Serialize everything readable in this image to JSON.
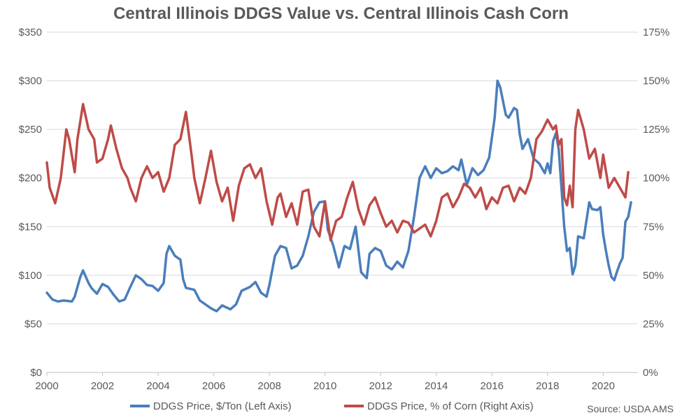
{
  "chart_data": {
    "type": "line",
    "title": "Central Illinois DDGS Value vs. Central Illinois Cash Corn",
    "source": "Source: USDA AMS",
    "x_ticks": [
      "2000",
      "2002",
      "2004",
      "2006",
      "2008",
      "2010",
      "2012",
      "2014",
      "2016",
      "2018",
      "2020"
    ],
    "xlim": [
      2000,
      2021.25
    ],
    "left_axis": {
      "ylim": [
        0,
        350
      ],
      "ticks": [
        "$0",
        "$50",
        "$100",
        "$150",
        "$200",
        "$250",
        "$300",
        "$350"
      ]
    },
    "right_axis": {
      "ylim": [
        0,
        175
      ],
      "ticks": [
        "0%",
        "25%",
        "50%",
        "75%",
        "100%",
        "125%",
        "150%",
        "175%"
      ]
    },
    "grid": true,
    "legend_position": "bottom",
    "series": [
      {
        "name": "DDGS Price, $/Ton (Left Axis)",
        "axis": "left",
        "color": "#4a7ebb",
        "points": [
          [
            2000.0,
            82
          ],
          [
            2000.2,
            75
          ],
          [
            2000.4,
            73
          ],
          [
            2000.6,
            74
          ],
          [
            2000.9,
            73
          ],
          [
            2001.0,
            78
          ],
          [
            2001.2,
            98
          ],
          [
            2001.3,
            105
          ],
          [
            2001.5,
            92
          ],
          [
            2001.6,
            87
          ],
          [
            2001.8,
            81
          ],
          [
            2002.0,
            91
          ],
          [
            2002.2,
            88
          ],
          [
            2002.4,
            80
          ],
          [
            2002.6,
            73
          ],
          [
            2002.8,
            75
          ],
          [
            2003.0,
            88
          ],
          [
            2003.2,
            100
          ],
          [
            2003.4,
            96
          ],
          [
            2003.6,
            90
          ],
          [
            2003.8,
            89
          ],
          [
            2004.0,
            84
          ],
          [
            2004.2,
            92
          ],
          [
            2004.3,
            122
          ],
          [
            2004.4,
            130
          ],
          [
            2004.6,
            120
          ],
          [
            2004.8,
            116
          ],
          [
            2004.9,
            96
          ],
          [
            2005.0,
            87
          ],
          [
            2005.3,
            85
          ],
          [
            2005.5,
            74
          ],
          [
            2005.7,
            70
          ],
          [
            2005.9,
            66
          ],
          [
            2006.1,
            63
          ],
          [
            2006.3,
            69
          ],
          [
            2006.6,
            65
          ],
          [
            2006.8,
            70
          ],
          [
            2007.0,
            84
          ],
          [
            2007.3,
            88
          ],
          [
            2007.5,
            93
          ],
          [
            2007.7,
            82
          ],
          [
            2007.9,
            78
          ],
          [
            2008.0,
            90
          ],
          [
            2008.2,
            120
          ],
          [
            2008.4,
            130
          ],
          [
            2008.6,
            128
          ],
          [
            2008.8,
            107
          ],
          [
            2009.0,
            110
          ],
          [
            2009.2,
            120
          ],
          [
            2009.4,
            140
          ],
          [
            2009.6,
            165
          ],
          [
            2009.8,
            175
          ],
          [
            2010.0,
            176
          ],
          [
            2010.1,
            147
          ],
          [
            2010.3,
            130
          ],
          [
            2010.5,
            108
          ],
          [
            2010.7,
            130
          ],
          [
            2010.9,
            127
          ],
          [
            2011.1,
            150
          ],
          [
            2011.3,
            103
          ],
          [
            2011.5,
            97
          ],
          [
            2011.6,
            122
          ],
          [
            2011.8,
            128
          ],
          [
            2012.0,
            125
          ],
          [
            2012.2,
            110
          ],
          [
            2012.4,
            106
          ],
          [
            2012.6,
            114
          ],
          [
            2012.8,
            108
          ],
          [
            2013.0,
            125
          ],
          [
            2013.2,
            160
          ],
          [
            2013.4,
            200
          ],
          [
            2013.6,
            212
          ],
          [
            2013.8,
            200
          ],
          [
            2014.0,
            210
          ],
          [
            2014.2,
            205
          ],
          [
            2014.4,
            207
          ],
          [
            2014.6,
            212
          ],
          [
            2014.8,
            208
          ],
          [
            2014.9,
            219
          ],
          [
            2015.1,
            193
          ],
          [
            2015.3,
            210
          ],
          [
            2015.5,
            203
          ],
          [
            2015.7,
            208
          ],
          [
            2015.9,
            221
          ],
          [
            2016.1,
            262
          ],
          [
            2016.2,
            300
          ],
          [
            2016.3,
            293
          ],
          [
            2016.5,
            265
          ],
          [
            2016.6,
            262
          ],
          [
            2016.8,
            272
          ],
          [
            2016.9,
            270
          ],
          [
            2017.0,
            245
          ],
          [
            2017.1,
            230
          ],
          [
            2017.3,
            240
          ],
          [
            2017.5,
            220
          ],
          [
            2017.7,
            215
          ],
          [
            2017.9,
            205
          ],
          [
            2018.0,
            215
          ],
          [
            2018.1,
            205
          ],
          [
            2018.2,
            238
          ],
          [
            2018.3,
            246
          ],
          [
            2018.4,
            230
          ],
          [
            2018.6,
            150
          ],
          [
            2018.7,
            125
          ],
          [
            2018.8,
            128
          ],
          [
            2018.9,
            101
          ],
          [
            2019.0,
            110
          ],
          [
            2019.1,
            140
          ],
          [
            2019.3,
            138
          ],
          [
            2019.5,
            175
          ],
          [
            2019.6,
            168
          ],
          [
            2019.8,
            167
          ],
          [
            2019.9,
            170
          ],
          [
            2020.0,
            142
          ],
          [
            2020.1,
            125
          ],
          [
            2020.2,
            110
          ],
          [
            2020.3,
            98
          ],
          [
            2020.4,
            95
          ],
          [
            2020.5,
            104
          ],
          [
            2020.6,
            112
          ],
          [
            2020.7,
            118
          ],
          [
            2020.8,
            155
          ],
          [
            2020.9,
            160
          ],
          [
            2021.0,
            175
          ]
        ]
      },
      {
        "name": "DDGS Price, % of Corn (Right Axis)",
        "axis": "right",
        "color": "#be4b48",
        "points": [
          [
            2000.0,
            108
          ],
          [
            2000.1,
            95
          ],
          [
            2000.3,
            87
          ],
          [
            2000.5,
            100
          ],
          [
            2000.7,
            125
          ],
          [
            2000.8,
            120
          ],
          [
            2001.0,
            103
          ],
          [
            2001.1,
            120
          ],
          [
            2001.3,
            138
          ],
          [
            2001.5,
            125
          ],
          [
            2001.7,
            120
          ],
          [
            2001.8,
            108
          ],
          [
            2002.0,
            110
          ],
          [
            2002.2,
            120
          ],
          [
            2002.3,
            127
          ],
          [
            2002.5,
            115
          ],
          [
            2002.7,
            105
          ],
          [
            2002.9,
            100
          ],
          [
            2003.0,
            95
          ],
          [
            2003.2,
            88
          ],
          [
            2003.4,
            100
          ],
          [
            2003.6,
            106
          ],
          [
            2003.8,
            100
          ],
          [
            2004.0,
            103
          ],
          [
            2004.2,
            93
          ],
          [
            2004.4,
            100
          ],
          [
            2004.6,
            117
          ],
          [
            2004.8,
            120
          ],
          [
            2005.0,
            134
          ],
          [
            2005.2,
            112
          ],
          [
            2005.3,
            100
          ],
          [
            2005.5,
            87
          ],
          [
            2005.7,
            100
          ],
          [
            2005.9,
            114
          ],
          [
            2006.1,
            98
          ],
          [
            2006.3,
            88
          ],
          [
            2006.5,
            95
          ],
          [
            2006.7,
            78
          ],
          [
            2006.9,
            96
          ],
          [
            2007.1,
            105
          ],
          [
            2007.3,
            107
          ],
          [
            2007.5,
            100
          ],
          [
            2007.7,
            105
          ],
          [
            2007.9,
            88
          ],
          [
            2008.1,
            76
          ],
          [
            2008.3,
            90
          ],
          [
            2008.4,
            92
          ],
          [
            2008.6,
            80
          ],
          [
            2008.8,
            87
          ],
          [
            2009.0,
            76
          ],
          [
            2009.2,
            93
          ],
          [
            2009.4,
            94
          ],
          [
            2009.6,
            75
          ],
          [
            2009.8,
            70
          ],
          [
            2010.0,
            88
          ],
          [
            2010.2,
            68
          ],
          [
            2010.4,
            78
          ],
          [
            2010.6,
            80
          ],
          [
            2010.8,
            90
          ],
          [
            2011.0,
            98
          ],
          [
            2011.2,
            84
          ],
          [
            2011.4,
            76
          ],
          [
            2011.6,
            86
          ],
          [
            2011.8,
            90
          ],
          [
            2012.0,
            82
          ],
          [
            2012.2,
            75
          ],
          [
            2012.4,
            78
          ],
          [
            2012.6,
            72
          ],
          [
            2012.8,
            78
          ],
          [
            2013.0,
            77
          ],
          [
            2013.2,
            72
          ],
          [
            2013.4,
            74
          ],
          [
            2013.6,
            76
          ],
          [
            2013.8,
            70
          ],
          [
            2014.0,
            78
          ],
          [
            2014.2,
            90
          ],
          [
            2014.4,
            92
          ],
          [
            2014.6,
            85
          ],
          [
            2014.8,
            90
          ],
          [
            2015.0,
            97
          ],
          [
            2015.2,
            95
          ],
          [
            2015.4,
            90
          ],
          [
            2015.6,
            95
          ],
          [
            2015.8,
            84
          ],
          [
            2016.0,
            90
          ],
          [
            2016.2,
            87
          ],
          [
            2016.4,
            95
          ],
          [
            2016.6,
            96
          ],
          [
            2016.8,
            88
          ],
          [
            2017.0,
            95
          ],
          [
            2017.2,
            92
          ],
          [
            2017.4,
            100
          ],
          [
            2017.6,
            120
          ],
          [
            2017.8,
            124
          ],
          [
            2018.0,
            130
          ],
          [
            2018.2,
            125
          ],
          [
            2018.3,
            127
          ],
          [
            2018.4,
            117
          ],
          [
            2018.5,
            120
          ],
          [
            2018.6,
            90
          ],
          [
            2018.7,
            86
          ],
          [
            2018.8,
            96
          ],
          [
            2018.9,
            85
          ],
          [
            2019.0,
            125
          ],
          [
            2019.1,
            135
          ],
          [
            2019.3,
            125
          ],
          [
            2019.5,
            110
          ],
          [
            2019.7,
            115
          ],
          [
            2019.9,
            100
          ],
          [
            2020.0,
            112
          ],
          [
            2020.2,
            95
          ],
          [
            2020.4,
            100
          ],
          [
            2020.6,
            95
          ],
          [
            2020.8,
            90
          ],
          [
            2020.9,
            103
          ]
        ]
      }
    ]
  },
  "legend": {
    "items": [
      {
        "label": "DDGS Price, $/Ton (Left Axis)",
        "color": "#4a7ebb"
      },
      {
        "label": "DDGS Price, % of Corn (Right Axis)",
        "color": "#be4b48"
      }
    ]
  }
}
